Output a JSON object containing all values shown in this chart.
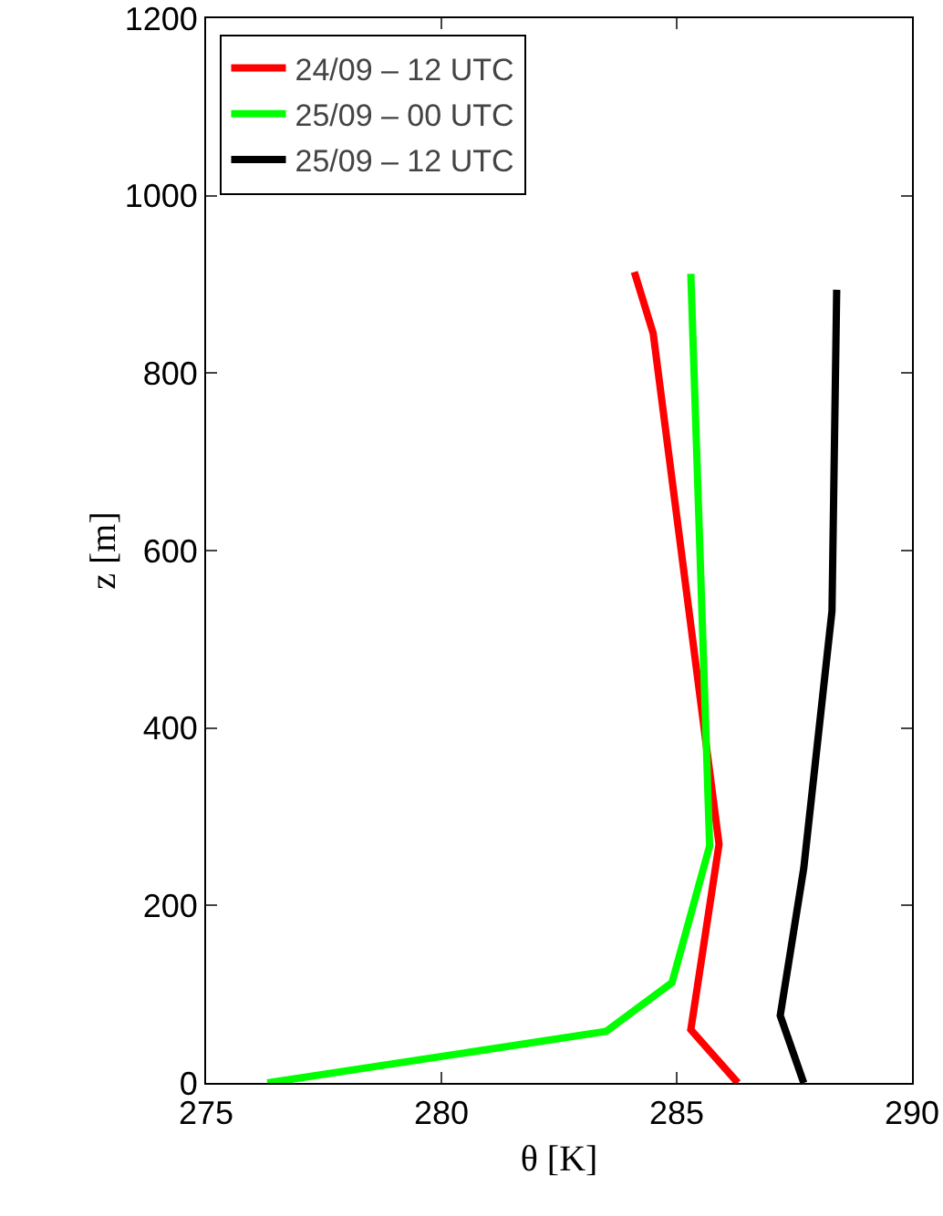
{
  "chart_data": {
    "type": "line",
    "xlabel": "θ [K]",
    "ylabel": "z [m]",
    "xlim": [
      275,
      290
    ],
    "xticks": [
      275,
      280,
      285,
      290
    ],
    "ylim": [
      0,
      1200
    ],
    "yticks": [
      0,
      200,
      400,
      600,
      800,
      1000,
      1200
    ],
    "grid": false,
    "legend": "top left",
    "marker": "none",
    "line_style": "solid",
    "series": [
      {
        "name": "24/09 – 12 UTC",
        "color": "#ff0000",
        "x": [
          286.3,
          285.3,
          285.9,
          284.5,
          284.1
        ],
        "values": [
          0,
          60,
          269,
          845,
          914
        ]
      },
      {
        "name": "25/09 – 00 UTC",
        "color": "#00ff00",
        "x": [
          276.3,
          283.5,
          284.9,
          285.7,
          285.3
        ],
        "values": [
          0,
          58,
          113,
          267,
          912
        ]
      },
      {
        "name": "25/09 – 12 UTC",
        "color": "#000000",
        "x": [
          287.7,
          287.2,
          287.7,
          288.3,
          288.4
        ],
        "values": [
          0,
          76,
          242,
          532,
          894
        ]
      }
    ]
  }
}
